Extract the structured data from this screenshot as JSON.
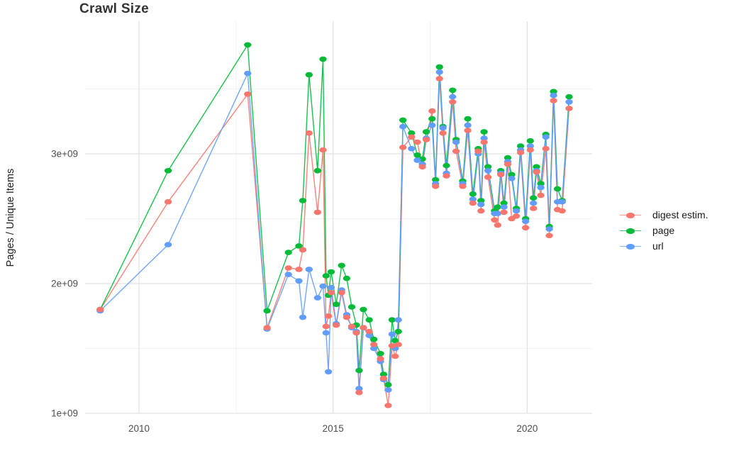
{
  "chart_data": {
    "type": "line",
    "title": "Crawl Size",
    "ylabel": "Pages / Unique Items",
    "xlabel": "",
    "unit": "billions (1e9) of pages / unique items",
    "grid": true,
    "legend_position": "right",
    "x_range": [
      2008.55,
      2021.85
    ],
    "y_range_billions": [
      1.0,
      4.02
    ],
    "x_ticks": [
      {
        "value": 2010,
        "label": "2010"
      },
      {
        "value": 2015,
        "label": "2015"
      },
      {
        "value": 2020,
        "label": "2020"
      }
    ],
    "x_minor_ticks": [
      2012.5,
      2017.5
    ],
    "y_ticks": [
      {
        "value": 1,
        "label": "1e+09"
      },
      {
        "value": 2,
        "label": "2e+09"
      },
      {
        "value": 3,
        "label": "3e+09"
      }
    ],
    "y_minor_ticks": [
      1.5,
      2.5,
      3.5
    ],
    "x": [
      2009.0,
      2010.75,
      2012.8,
      2013.3,
      2013.85,
      2014.12,
      2014.22,
      2014.38,
      2014.6,
      2014.74,
      2014.82,
      2014.88,
      2014.95,
      2015.08,
      2015.22,
      2015.35,
      2015.48,
      2015.6,
      2015.67,
      2015.78,
      2015.93,
      2016.05,
      2016.22,
      2016.3,
      2016.42,
      2016.52,
      2016.6,
      2016.68,
      2016.8,
      2017.02,
      2017.17,
      2017.3,
      2017.4,
      2017.55,
      2017.64,
      2017.74,
      2017.83,
      2017.92,
      2018.08,
      2018.17,
      2018.34,
      2018.47,
      2018.6,
      2018.74,
      2018.81,
      2018.89,
      2018.99,
      2019.16,
      2019.24,
      2019.32,
      2019.4,
      2019.5,
      2019.6,
      2019.72,
      2019.83,
      2019.96,
      2020.08,
      2020.16,
      2020.24,
      2020.35,
      2020.48,
      2020.57,
      2020.68,
      2020.78,
      2020.9,
      2021.08
    ],
    "series": [
      {
        "name": "digest estim.",
        "color": "#F8766D",
        "values": [
          1.8,
          2.63,
          3.46,
          1.66,
          2.12,
          2.11,
          2.26,
          3.16,
          2.55,
          3.03,
          1.67,
          1.75,
          1.93,
          1.68,
          1.93,
          1.74,
          1.67,
          1.62,
          1.16,
          1.66,
          1.63,
          1.53,
          1.42,
          1.27,
          1.06,
          1.52,
          1.44,
          1.53,
          3.05,
          3.13,
          3.09,
          2.9,
          3.11,
          3.33,
          2.75,
          3.58,
          3.16,
          2.83,
          3.4,
          3.02,
          2.75,
          3.18,
          2.62,
          3.02,
          2.56,
          3.09,
          2.82,
          2.49,
          2.45,
          2.84,
          2.55,
          2.92,
          2.5,
          2.52,
          3.01,
          2.43,
          3.03,
          2.58,
          2.86,
          2.68,
          3.04,
          2.37,
          3.41,
          2.57,
          2.56,
          3.35
        ]
      },
      {
        "name": "page",
        "color": "#00BA38",
        "values": [
          1.8,
          2.87,
          3.84,
          1.79,
          2.24,
          2.29,
          2.64,
          3.61,
          2.87,
          3.73,
          2.06,
          1.91,
          2.09,
          1.84,
          2.14,
          2.04,
          1.82,
          1.68,
          1.33,
          1.8,
          1.72,
          1.57,
          1.46,
          1.3,
          1.22,
          1.72,
          1.56,
          1.63,
          3.26,
          3.16,
          2.99,
          2.96,
          3.17,
          3.27,
          2.8,
          3.67,
          3.21,
          2.91,
          3.49,
          3.11,
          2.79,
          3.27,
          2.69,
          3.04,
          2.64,
          3.17,
          2.9,
          2.56,
          2.59,
          2.87,
          2.62,
          2.97,
          2.84,
          2.58,
          3.06,
          2.5,
          3.1,
          2.66,
          2.9,
          2.77,
          3.15,
          2.44,
          3.48,
          2.73,
          2.64,
          3.44
        ]
      },
      {
        "name": "url",
        "color": "#619CFF",
        "values": [
          1.79,
          2.3,
          3.62,
          1.65,
          2.07,
          2.02,
          1.74,
          2.11,
          1.89,
          1.98,
          1.62,
          1.32,
          1.97,
          1.69,
          1.95,
          1.76,
          1.66,
          1.63,
          1.19,
          1.66,
          1.6,
          1.5,
          1.4,
          1.26,
          1.18,
          1.61,
          1.5,
          1.72,
          3.21,
          3.04,
          2.95,
          2.92,
          3.12,
          3.22,
          2.77,
          3.63,
          3.2,
          2.85,
          3.44,
          3.09,
          2.77,
          3.22,
          2.65,
          3.0,
          2.61,
          3.12,
          2.87,
          2.54,
          2.54,
          2.85,
          2.59,
          2.94,
          2.81,
          2.56,
          3.03,
          2.48,
          3.06,
          2.62,
          2.87,
          2.74,
          3.13,
          2.42,
          3.45,
          2.63,
          2.63,
          3.4
        ]
      }
    ],
    "style": {
      "background": "#ffffff",
      "grid_major_color": "#e2e2e2",
      "grid_minor_color": "#ededed",
      "tick_label_color": "#4d4d4d",
      "title_color": "#333333",
      "axis_title_color": "#1f1f1f"
    }
  },
  "legend": {
    "items": [
      {
        "label": "digest estim."
      },
      {
        "label": "page"
      },
      {
        "label": "url"
      }
    ]
  }
}
